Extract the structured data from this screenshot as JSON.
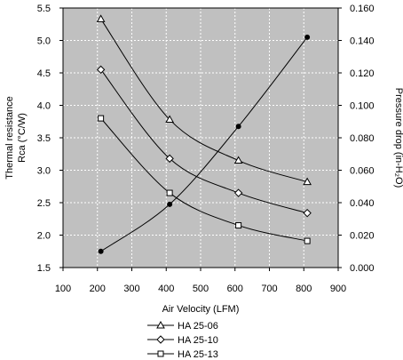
{
  "chart_data": {
    "type": "line",
    "xlabel": "Air Velocity (LFM)",
    "ylabel_left": [
      "Thermal resistance",
      "Rca (°C/W)"
    ],
    "ylabel_right": "Pressure drop (in-H₂O)",
    "xlim": [
      100,
      900
    ],
    "x_ticks": [
      100,
      200,
      300,
      400,
      500,
      600,
      700,
      800,
      900
    ],
    "ylim_left": [
      1.5,
      5.5
    ],
    "y_ticks_left": [
      "1.5",
      "2.0",
      "2.5",
      "3.0",
      "3.5",
      "4.0",
      "4.5",
      "5.0",
      "5.5"
    ],
    "ylim_right": [
      0,
      0.16
    ],
    "y_ticks_right": [
      "0.000",
      "0.020",
      "0.040",
      "0.060",
      "0.080",
      "0.100",
      "0.120",
      "0.140",
      "0.160"
    ],
    "grid": true,
    "legend_position": "bottom",
    "series": [
      {
        "name": "HA 25-06",
        "marker": "triangle",
        "axis": "left",
        "x": [
          210,
          410,
          610,
          810
        ],
        "y": [
          5.33,
          3.78,
          3.15,
          2.82
        ]
      },
      {
        "name": "HA 25-10",
        "marker": "diamond",
        "axis": "left",
        "x": [
          210,
          410,
          610,
          810
        ],
        "y": [
          4.55,
          3.18,
          2.65,
          2.34
        ]
      },
      {
        "name": "HA 25-13",
        "marker": "square",
        "axis": "left",
        "x": [
          210,
          410,
          610,
          810
        ],
        "y": [
          3.8,
          2.65,
          2.15,
          1.91
        ]
      },
      {
        "marker": "dot",
        "axis": "right",
        "x": [
          210,
          410,
          610,
          810
        ],
        "y": [
          0.01,
          0.039,
          0.087,
          0.142
        ]
      }
    ]
  }
}
